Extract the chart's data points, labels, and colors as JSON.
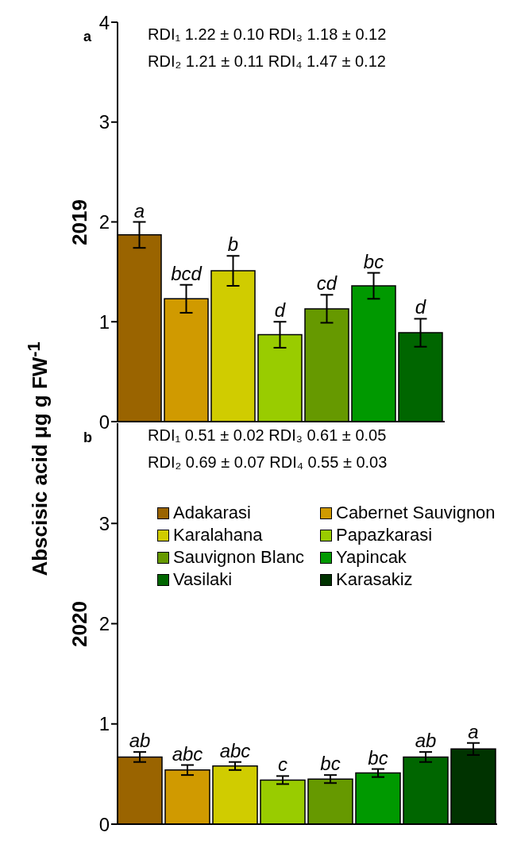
{
  "chart_data": [
    {
      "type": "bar",
      "title": "a",
      "ylabel": "2019",
      "categories": [
        null
      ],
      "ylim": [
        0,
        4
      ],
      "yticks": [
        0,
        1,
        2,
        3,
        4
      ],
      "legend": false,
      "annotations": [
        "RDI₁ 1.22 ± 0.10 RDI₃ 1.18 ± 0.12",
        "RDI₂ 1.21 ± 0.11 RDI₄ 1.47 ± 0.12",
        "Abscisic acid μg g FW$^{-1}$"
      ],
      "series": [
        {
          "color": "#9a6400",
          "values": [
            1.87
          ],
          "errors": [
            0.13
          ],
          "value_labels": [
            "a"
          ]
        },
        {
          "color": "#d09a00",
          "values": [
            1.23
          ],
          "errors": [
            0.14
          ],
          "value_labels": [
            "bcd"
          ]
        },
        {
          "color": "#d0cc00",
          "values": [
            1.51
          ],
          "errors": [
            0.15
          ],
          "value_labels": [
            "b"
          ]
        },
        {
          "color": "#99cc00",
          "values": [
            0.87
          ],
          "errors": [
            0.13
          ],
          "value_labels": [
            "d"
          ]
        },
        {
          "color": "#669900",
          "values": [
            1.13
          ],
          "errors": [
            0.14
          ],
          "value_labels": [
            "cd"
          ]
        },
        {
          "color": "#009900",
          "values": [
            1.36
          ],
          "errors": [
            0.13
          ],
          "value_labels": [
            "bc"
          ]
        },
        {
          "color": "#006600",
          "values": [
            0.89
          ],
          "errors": [
            0.14
          ],
          "value_labels": [
            "d"
          ]
        }
      ]
    },
    {
      "type": "bar",
      "title": "b",
      "ylabel": "2020",
      "categories": [
        null
      ],
      "ylim": [
        0,
        4
      ],
      "yticks": [
        0,
        1,
        2,
        3
      ],
      "legend": "top",
      "annotations": [
        "RDI₁ 0.51 ± 0.02 RDI₃ 0.61 ± 0.05",
        "RDI₂ 0.69 ± 0.07 RDI₄ 0.55 ± 0.03"
      ],
      "series": [
        {
          "name": "Adakarasi",
          "color": "#9a6400",
          "values": [
            0.67
          ],
          "errors": [
            0.05
          ],
          "value_labels": [
            "ab"
          ]
        },
        {
          "name": "Cabernet Sauvignon",
          "color": "#d09a00",
          "values": [
            0.54
          ],
          "errors": [
            0.05
          ],
          "value_labels": [
            "abc"
          ]
        },
        {
          "name": "Karalahana",
          "color": "#d0cc00",
          "values": [
            0.58
          ],
          "errors": [
            0.04
          ],
          "value_labels": [
            "abc"
          ]
        },
        {
          "name": "Papazkarasi",
          "color": "#99cc00",
          "values": [
            0.44
          ],
          "errors": [
            0.04
          ],
          "value_labels": [
            "c"
          ]
        },
        {
          "name": "Sauvignon Blanc",
          "color": "#669900",
          "values": [
            0.45
          ],
          "errors": [
            0.04
          ],
          "value_labels": [
            "bc"
          ]
        },
        {
          "name": "Yapincak",
          "color": "#009900",
          "values": [
            0.51
          ],
          "errors": [
            0.04
          ],
          "value_labels": [
            "bc"
          ]
        },
        {
          "name": "Vasilaki",
          "color": "#006600",
          "values": [
            0.67
          ],
          "errors": [
            0.05
          ],
          "value_labels": [
            "ab"
          ]
        },
        {
          "name": "Karasakiz",
          "color": "#003300",
          "values": [
            0.75
          ],
          "errors": [
            0.06
          ],
          "value_labels": [
            "a"
          ]
        }
      ]
    }
  ]
}
